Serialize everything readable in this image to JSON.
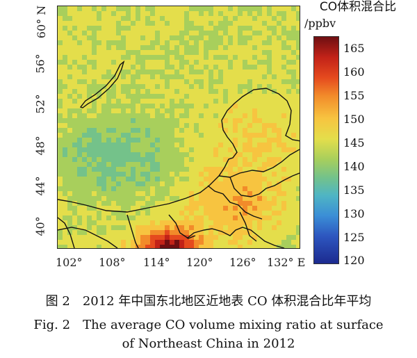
{
  "map": {
    "lon_ticks": [
      "102°",
      "108°",
      "114°",
      "120°",
      "126°",
      "132° E"
    ],
    "lat_ticks": [
      "40°",
      "44°",
      "48°",
      "52°",
      "56°",
      "60° N"
    ]
  },
  "colorbar": {
    "title": "CO体积混合比",
    "unit": "/ppbv",
    "ticks": [
      "165",
      "160",
      "155",
      "150",
      "145",
      "140",
      "135",
      "130",
      "125",
      "120"
    ],
    "colors": [
      "#1c2a8f",
      "#2d56bf",
      "#3b8ed6",
      "#4fb5c4",
      "#74c28a",
      "#a8cf5c",
      "#e4de4b",
      "#f7c440",
      "#f28b2a",
      "#e54a1e",
      "#c22218",
      "#6e0f12"
    ]
  },
  "caption": {
    "cn": "图 2　2012 年中国东北地区近地表 CO 体积混合比年平均",
    "en_line1": "Fig. 2　The average CO volume mixing ratio at surface",
    "en_line2": "of Northeast China in 2012"
  }
}
